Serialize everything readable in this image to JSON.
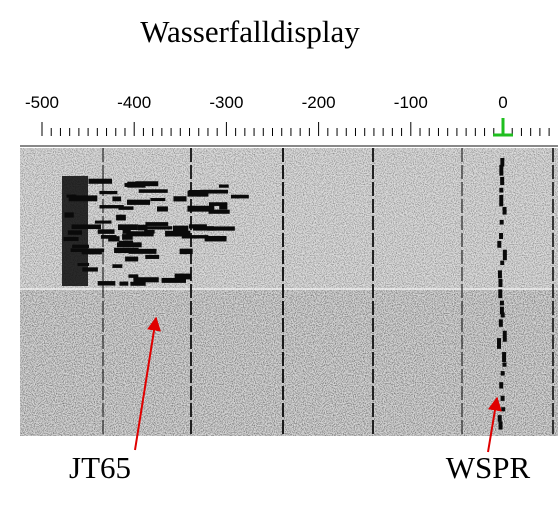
{
  "title": "Wasserfalldisplay",
  "scale": {
    "labels": [
      "-500",
      "-400",
      "-300",
      "-200",
      "-100",
      "0"
    ]
  },
  "annotations": [
    {
      "label": "JT65"
    },
    {
      "label": "WSPR"
    }
  ]
}
